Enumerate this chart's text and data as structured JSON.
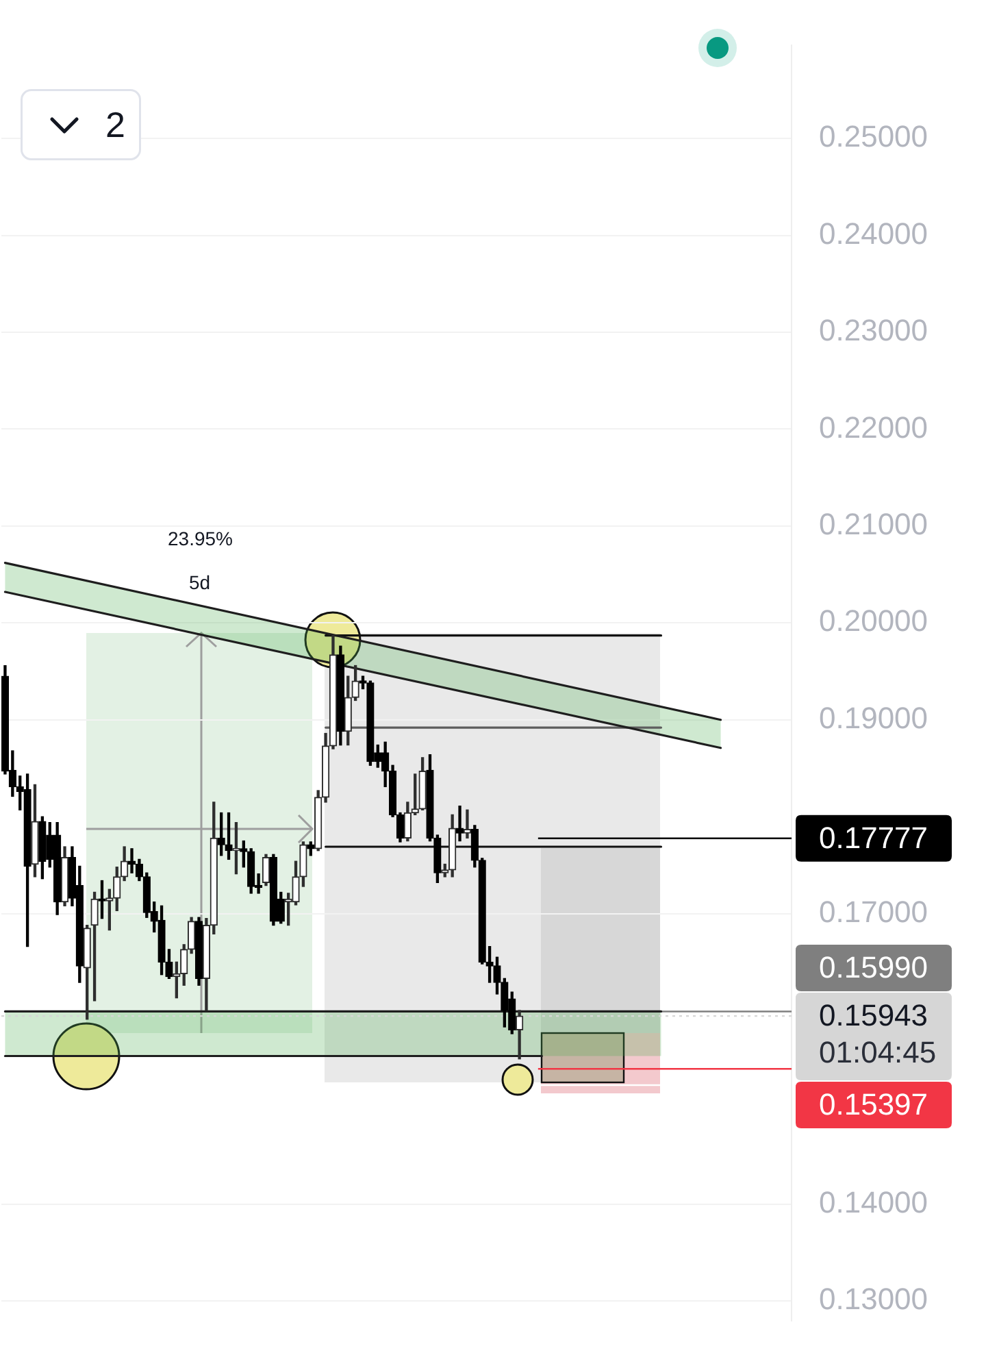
{
  "chart_data": {
    "type": "candlestick",
    "categories": [
      null,
      null,
      null,
      null,
      null,
      null,
      null,
      null,
      null,
      null,
      null,
      null,
      null,
      null,
      null,
      null,
      null,
      null,
      null,
      null,
      null,
      null,
      null,
      null,
      null,
      null,
      null,
      null,
      null,
      null,
      null,
      null,
      null,
      null,
      null,
      null,
      null,
      null,
      null,
      null,
      null,
      null,
      null,
      null,
      null,
      null,
      null,
      null,
      null,
      null,
      null,
      null,
      null,
      null,
      null,
      null,
      null,
      null,
      null,
      null,
      null,
      null,
      null,
      null,
      null,
      null,
      null,
      null,
      null,
      null,
      null,
      null,
      null,
      null,
      null,
      null,
      null,
      null,
      null,
      null,
      null,
      null,
      null,
      null,
      null,
      null,
      null,
      null,
      null,
      null,
      null,
      null,
      null,
      null,
      null,
      null,
      null,
      null,
      null,
      null,
      null,
      null,
      null,
      null,
      null,
      null
    ],
    "ohlc": [
      [
        0.1945,
        0.1956,
        0.1844,
        0.1847
      ],
      [
        0.1848,
        0.1868,
        0.1821,
        0.1831
      ],
      [
        0.1831,
        0.1842,
        0.1807,
        0.1826
      ],
      [
        0.1828,
        0.1844,
        0.1666,
        0.1749
      ],
      [
        0.1751,
        0.1833,
        0.1738,
        0.1795
      ],
      [
        0.1795,
        0.18,
        0.1736,
        0.1754
      ],
      [
        0.1781,
        0.1794,
        0.1748,
        0.1756
      ],
      [
        0.1781,
        0.1794,
        0.1699,
        0.1712
      ],
      [
        0.1712,
        0.1769,
        0.1708,
        0.1758
      ],
      [
        0.1758,
        0.1769,
        0.1708,
        0.1716
      ],
      [
        0.1729,
        0.1749,
        0.1629,
        0.1646
      ],
      [
        0.1644,
        0.1688,
        0.1591,
        0.1685
      ],
      [
        0.1688,
        0.1722,
        0.161,
        0.1715
      ],
      [
        0.1715,
        0.1734,
        0.1695,
        0.1713
      ],
      [
        0.1713,
        0.1725,
        0.1683,
        0.1716
      ],
      [
        0.1716,
        0.1748,
        0.1703,
        0.1738
      ],
      [
        0.1738,
        0.1769,
        0.1734,
        0.1754
      ],
      [
        0.1754,
        0.1767,
        0.1742,
        0.1751
      ],
      [
        0.1751,
        0.1756,
        0.1734,
        0.1738
      ],
      [
        0.1738,
        0.1742,
        0.1696,
        0.1701
      ],
      [
        0.1702,
        0.1712,
        0.1681,
        0.1692
      ],
      [
        0.1693,
        0.1708,
        0.1637,
        0.165
      ],
      [
        0.165,
        0.1663,
        0.1633,
        0.1635
      ],
      [
        0.1635,
        0.165,
        0.1613,
        0.1638
      ],
      [
        0.1638,
        0.1668,
        0.1626,
        0.1663
      ],
      [
        0.1663,
        0.1696,
        0.1659,
        0.1692
      ],
      [
        0.1692,
        0.1696,
        0.1626,
        0.1633
      ],
      [
        0.1633,
        0.1695,
        0.16,
        0.1688
      ],
      [
        0.1688,
        0.1815,
        0.1679,
        0.1778
      ],
      [
        0.1778,
        0.1804,
        0.176,
        0.1771
      ],
      [
        0.1771,
        0.1804,
        0.1756,
        0.1765
      ],
      [
        0.1765,
        0.1794,
        0.1741,
        0.1767
      ],
      [
        0.1767,
        0.1775,
        0.1748,
        0.1764
      ],
      [
        0.1764,
        0.1767,
        0.1721,
        0.1728
      ],
      [
        0.1729,
        0.1741,
        0.1721,
        0.1727
      ],
      [
        0.1732,
        0.1761,
        0.1729,
        0.1758
      ],
      [
        0.1758,
        0.1761,
        0.1688,
        0.1692
      ],
      [
        0.1715,
        0.1722,
        0.169,
        0.1692
      ],
      [
        0.1712,
        0.1721,
        0.1688,
        0.1715
      ],
      [
        0.1712,
        0.1754,
        0.1709,
        0.1738
      ],
      [
        0.1738,
        0.1774,
        0.1728,
        0.1771
      ],
      [
        0.1771,
        0.1774,
        0.176,
        0.1767
      ],
      [
        0.1767,
        0.1827,
        0.1765,
        0.182
      ],
      [
        0.182,
        0.1886,
        0.1815,
        0.1873
      ],
      [
        0.1873,
        0.1987,
        0.187,
        0.1967
      ],
      [
        0.1967,
        0.1976,
        0.1874,
        0.1888
      ],
      [
        0.1888,
        0.1945,
        0.1874,
        0.1923
      ],
      [
        0.1923,
        0.1956,
        0.192,
        0.194
      ],
      [
        0.194,
        0.1945,
        0.1932,
        0.1938
      ],
      [
        0.1938,
        0.194,
        0.1853,
        0.1857
      ],
      [
        0.1866,
        0.1874,
        0.1851,
        0.1857
      ],
      [
        0.1866,
        0.1877,
        0.1831,
        0.1847
      ],
      [
        0.1847,
        0.1853,
        0.18,
        0.1802
      ],
      [
        0.1802,
        0.1804,
        0.1774,
        0.1778
      ],
      [
        0.1778,
        0.1815,
        0.1775,
        0.1804
      ],
      [
        0.1804,
        0.1844,
        0.1802,
        0.1808
      ],
      [
        0.1808,
        0.1861,
        0.1807,
        0.1847
      ],
      [
        0.1848,
        0.1864,
        0.1775,
        0.1778
      ],
      [
        0.1778,
        0.1781,
        0.1732,
        0.1742
      ],
      [
        0.1742,
        0.1751,
        0.1738,
        0.1745
      ],
      [
        0.1745,
        0.1802,
        0.1738,
        0.1788
      ],
      [
        0.1788,
        0.1811,
        0.1775,
        0.1783
      ],
      [
        0.1783,
        0.1807,
        0.1778,
        0.1787
      ],
      [
        0.1787,
        0.1791,
        0.1748,
        0.1755
      ],
      [
        0.1755,
        0.1757,
        0.1648,
        0.165
      ],
      [
        0.165,
        0.1666,
        0.1629,
        0.1646
      ],
      [
        0.1646,
        0.1655,
        0.1617,
        0.1629
      ],
      [
        0.1629,
        0.1633,
        0.1583,
        0.16
      ],
      [
        0.1612,
        0.1619,
        0.1576,
        0.158
      ],
      [
        0.158,
        0.16,
        0.155,
        0.15943
      ],
      null,
      null,
      null,
      null,
      null,
      null,
      null,
      null,
      null,
      null,
      null,
      null,
      null,
      null,
      null,
      null,
      null,
      null,
      null,
      null,
      null,
      null,
      null,
      null,
      null,
      null,
      null,
      null,
      null,
      null,
      null,
      null,
      null,
      null,
      null,
      null
    ],
    "series": [
      {
        "type": "line",
        "color": "#1e1e1e",
        "values": [
          0.2062,
          null,
          null,
          null,
          null,
          null,
          null,
          null,
          null,
          null,
          null,
          null,
          null,
          null,
          null,
          null,
          null,
          null,
          null,
          null,
          null,
          null,
          null,
          null,
          null,
          null,
          null,
          null,
          null,
          null,
          null,
          null,
          null,
          null,
          null,
          null,
          null,
          null,
          null,
          null,
          null,
          null,
          null,
          null,
          null,
          null,
          null,
          null,
          null,
          null,
          null,
          null,
          null,
          null,
          null,
          null,
          null,
          null,
          null,
          null,
          null,
          null,
          null,
          null,
          null,
          null,
          null,
          null,
          null,
          null,
          null,
          null,
          null,
          null,
          null,
          null,
          null,
          null,
          null,
          null,
          null,
          null,
          null,
          null,
          null,
          null,
          null,
          null,
          null,
          null,
          null,
          null,
          null,
          null,
          null,
          null,
          0.19,
          null,
          null,
          null,
          null,
          null,
          null,
          null,
          null,
          null
        ]
      },
      {
        "type": "line",
        "color": "#1e1e1e",
        "values": [
          0.2032,
          null,
          null,
          null,
          null,
          null,
          null,
          null,
          null,
          null,
          null,
          null,
          null,
          null,
          null,
          null,
          null,
          null,
          null,
          null,
          null,
          null,
          null,
          null,
          null,
          null,
          null,
          null,
          null,
          null,
          null,
          null,
          null,
          null,
          null,
          null,
          null,
          null,
          null,
          null,
          null,
          null,
          null,
          null,
          null,
          null,
          null,
          null,
          null,
          null,
          null,
          null,
          null,
          null,
          null,
          null,
          null,
          null,
          null,
          null,
          null,
          null,
          null,
          null,
          null,
          null,
          null,
          null,
          null,
          null,
          null,
          null,
          null,
          null,
          null,
          null,
          null,
          null,
          null,
          null,
          null,
          null,
          null,
          null,
          null,
          null,
          null,
          null,
          null,
          null,
          null,
          null,
          null,
          null,
          null,
          null,
          0.1871,
          null,
          null,
          null,
          null,
          null,
          null,
          null,
          null,
          null
        ],
        "lower": [
          0.2032,
          null,
          null,
          null,
          null,
          null,
          null,
          null,
          null,
          null,
          null,
          null,
          null,
          null,
          null,
          null,
          null,
          null,
          null,
          null,
          null,
          null,
          null,
          null,
          null,
          null,
          null,
          null,
          null,
          null,
          null,
          null,
          null,
          null,
          null,
          null,
          null,
          null,
          null,
          null,
          null,
          null,
          null,
          null,
          null,
          null,
          null,
          null,
          null,
          null,
          null,
          null,
          null,
          null,
          null,
          null,
          null,
          null,
          null,
          null,
          null,
          null,
          null,
          null,
          null,
          null,
          null,
          null,
          null,
          null,
          null,
          null,
          null,
          null,
          null,
          null,
          null,
          null,
          null,
          null,
          null,
          null,
          null,
          null,
          null,
          null,
          null,
          null,
          null,
          null,
          null,
          null,
          null,
          null,
          null,
          null,
          0.1871,
          null,
          null,
          null,
          null,
          null,
          null,
          null,
          null,
          null
        ],
        "upper": [
          0.2062,
          null,
          null,
          null,
          null,
          null,
          null,
          null,
          null,
          null,
          null,
          null,
          null,
          null,
          null,
          null,
          null,
          null,
          null,
          null,
          null,
          null,
          null,
          null,
          null,
          null,
          null,
          null,
          null,
          null,
          null,
          null,
          null,
          null,
          null,
          null,
          null,
          null,
          null,
          null,
          null,
          null,
          null,
          null,
          null,
          null,
          null,
          null,
          null,
          null,
          null,
          null,
          null,
          null,
          null,
          null,
          null,
          null,
          null,
          null,
          null,
          null,
          null,
          null,
          null,
          null,
          null,
          null,
          null,
          null,
          null,
          null,
          null,
          null,
          null,
          null,
          null,
          null,
          null,
          null,
          null,
          null,
          null,
          null,
          null,
          null,
          null,
          null,
          null,
          null,
          null,
          null,
          null,
          null,
          null,
          null,
          0.19,
          null,
          null,
          null,
          null,
          null,
          null,
          null,
          null,
          null
        ]
      },
      {
        "type": "line",
        "color": "#1e1e1e",
        "values": [
          0.1599,
          null,
          null,
          null,
          null,
          null,
          null,
          null,
          null,
          null,
          null,
          null,
          null,
          null,
          null,
          null,
          null,
          null,
          null,
          null,
          null,
          null,
          null,
          null,
          null,
          null,
          null,
          null,
          null,
          null,
          null,
          null,
          null,
          null,
          null,
          null,
          null,
          null,
          null,
          null,
          null,
          null,
          null,
          null,
          null,
          null,
          null,
          null,
          null,
          null,
          null,
          null,
          null,
          null,
          null,
          null,
          null,
          null,
          null,
          null,
          null,
          null,
          null,
          null,
          null,
          null,
          null,
          null,
          null,
          null,
          null,
          null,
          null,
          null,
          null,
          null,
          null,
          null,
          null,
          null,
          null,
          null,
          null,
          null,
          null,
          null,
          null,
          null,
          0.1599,
          null,
          null,
          null,
          null,
          null,
          null,
          null,
          null,
          null,
          null,
          null,
          null,
          null,
          null,
          null,
          null,
          null
        ],
        "lower": [
          0.1553,
          null,
          null,
          null,
          null,
          null,
          null,
          null,
          null,
          null,
          null,
          null,
          null,
          null,
          null,
          null,
          null,
          null,
          null,
          null,
          null,
          null,
          null,
          null,
          null,
          null,
          null,
          null,
          null,
          null,
          null,
          null,
          null,
          null,
          null,
          null,
          null,
          null,
          null,
          null,
          null,
          null,
          null,
          null,
          null,
          null,
          null,
          null,
          null,
          null,
          null,
          null,
          null,
          null,
          null,
          null,
          null,
          null,
          null,
          null,
          null,
          null,
          null,
          null,
          null,
          null,
          null,
          null,
          null,
          null,
          null,
          null,
          null,
          null,
          null,
          null,
          null,
          null,
          null,
          null,
          null,
          null,
          null,
          null,
          null,
          null,
          null,
          null,
          0.1553,
          null,
          null,
          null,
          null,
          null,
          null,
          null,
          null,
          null,
          null,
          null,
          null,
          null,
          null,
          null,
          null,
          null
        ],
        "upper": [
          0.1599,
          null,
          null,
          null,
          null,
          null,
          null,
          null,
          null,
          null,
          null,
          null,
          null,
          null,
          null,
          null,
          null,
          null,
          null,
          null,
          null,
          null,
          null,
          null,
          null,
          null,
          null,
          null,
          null,
          null,
          null,
          null,
          null,
          null,
          null,
          null,
          null,
          null,
          null,
          null,
          null,
          null,
          null,
          null,
          null,
          null,
          null,
          null,
          null,
          null,
          null,
          null,
          null,
          null,
          null,
          null,
          null,
          null,
          null,
          null,
          null,
          null,
          null,
          null,
          null,
          null,
          null,
          null,
          null,
          null,
          null,
          null,
          null,
          null,
          null,
          null,
          null,
          null,
          null,
          null,
          null,
          null,
          null,
          null,
          null,
          null,
          null,
          null,
          0.1599,
          null,
          null,
          null,
          null,
          null,
          null,
          null,
          null,
          null,
          null,
          null,
          null,
          null,
          null,
          null,
          null,
          null
        ]
      },
      {
        "type": "line",
        "color": "#1e1e1e",
        "values": [
          0.1553,
          null,
          null,
          null,
          null,
          null,
          null,
          null,
          null,
          null,
          null,
          null,
          null,
          null,
          null,
          null,
          null,
          null,
          null,
          null,
          null,
          null,
          null,
          null,
          null,
          null,
          null,
          null,
          null,
          null,
          null,
          null,
          null,
          null,
          null,
          null,
          null,
          null,
          null,
          null,
          null,
          null,
          null,
          null,
          null,
          null,
          null,
          null,
          null,
          null,
          null,
          null,
          null,
          null,
          null,
          null,
          null,
          null,
          null,
          null,
          null,
          null,
          null,
          null,
          null,
          null,
          null,
          null,
          null,
          null,
          null,
          null,
          0.1553,
          null,
          null,
          null,
          null,
          null,
          null,
          null,
          null,
          null,
          null,
          null,
          null,
          null,
          null,
          null,
          null,
          null,
          null,
          null,
          null,
          null,
          null,
          null,
          null,
          null,
          null,
          null,
          null,
          null,
          null,
          null,
          null,
          null
        ]
      },
      {
        "type": "line",
        "color": "#111111",
        "values": [
          null,
          null,
          null,
          null,
          null,
          null,
          null,
          null,
          null,
          null,
          null,
          null,
          null,
          null,
          null,
          null,
          null,
          null,
          null,
          null,
          null,
          null,
          null,
          null,
          null,
          null,
          null,
          null,
          null,
          null,
          null,
          null,
          null,
          null,
          null,
          null,
          null,
          null,
          null,
          null,
          null,
          null,
          null,
          0.1987,
          null,
          null,
          null,
          null,
          null,
          null,
          null,
          null,
          null,
          null,
          null,
          null,
          null,
          null,
          null,
          null,
          null,
          null,
          null,
          null,
          null,
          null,
          null,
          null,
          null,
          null,
          null,
          null,
          null,
          null,
          null,
          null,
          null,
          null,
          null,
          null,
          null,
          null,
          null,
          null,
          null,
          null,
          null,
          null,
          0.1987,
          null,
          null,
          null,
          null,
          null,
          null,
          null,
          null,
          null,
          null,
          null,
          null,
          null,
          null,
          null,
          null,
          null
        ]
      },
      {
        "type": "line",
        "color": "#5d5d5d",
        "values": [
          null,
          null,
          null,
          null,
          null,
          null,
          null,
          null,
          null,
          null,
          null,
          null,
          null,
          null,
          null,
          null,
          null,
          null,
          null,
          null,
          null,
          null,
          null,
          null,
          null,
          null,
          null,
          null,
          null,
          null,
          null,
          null,
          null,
          null,
          null,
          null,
          null,
          null,
          null,
          null,
          null,
          null,
          null,
          0.1892,
          null,
          null,
          null,
          null,
          null,
          null,
          null,
          null,
          null,
          null,
          null,
          null,
          null,
          null,
          null,
          null,
          null,
          null,
          null,
          null,
          null,
          null,
          null,
          null,
          null,
          null,
          null,
          null,
          null,
          null,
          null,
          null,
          null,
          null,
          null,
          null,
          null,
          null,
          null,
          null,
          null,
          null,
          null,
          null,
          0.1892,
          null,
          null,
          null,
          null,
          null,
          null,
          null,
          null,
          null,
          null,
          null,
          null,
          null,
          null,
          null,
          null,
          null
        ]
      },
      {
        "type": "line",
        "color": "#111111",
        "values": [
          null,
          null,
          null,
          null,
          null,
          null,
          null,
          null,
          null,
          null,
          null,
          null,
          null,
          null,
          null,
          null,
          null,
          null,
          null,
          null,
          null,
          null,
          null,
          null,
          null,
          null,
          null,
          null,
          null,
          null,
          null,
          null,
          null,
          null,
          null,
          null,
          null,
          null,
          null,
          null,
          null,
          null,
          null,
          0.1769,
          null,
          null,
          null,
          null,
          null,
          null,
          null,
          null,
          null,
          null,
          null,
          null,
          null,
          null,
          null,
          null,
          null,
          null,
          null,
          null,
          null,
          null,
          null,
          null,
          null,
          null,
          null,
          null,
          null,
          null,
          null,
          null,
          null,
          null,
          null,
          null,
          null,
          null,
          null,
          null,
          null,
          null,
          null,
          null,
          0.1769,
          null,
          null,
          null,
          null,
          null,
          null,
          null,
          null,
          null,
          null,
          null,
          null,
          null,
          null,
          null,
          null,
          null
        ]
      }
    ],
    "ylim": [
      0.128,
      0.2596
    ],
    "yticks": [
      {
        "value": 0.25,
        "label": "0.25000"
      },
      {
        "value": 0.24,
        "label": "0.24000"
      },
      {
        "value": 0.23,
        "label": "0.23000"
      },
      {
        "value": 0.22,
        "label": "0.22000"
      },
      {
        "value": 0.21,
        "label": "0.21000"
      },
      {
        "value": 0.2,
        "label": "0.20000"
      },
      {
        "value": 0.19,
        "label": "0.19000"
      },
      {
        "value": 0.17,
        "label": "0.17000"
      },
      {
        "value": 0.14,
        "label": "0.14000"
      },
      {
        "value": 0.13,
        "label": "0.13000"
      }
    ],
    "grid": "y",
    "ref_lines": [
      {
        "axis": "y",
        "value": 0.17777,
        "label": "0.17777",
        "color": "#000000"
      },
      {
        "axis": "y",
        "value": 0.1599,
        "label": "0.15990",
        "color": "#7f7f7f"
      },
      {
        "axis": "y",
        "value": 0.15943,
        "label": "0.15943",
        "color": "#d6d6d6",
        "line_style": "dotted"
      },
      {
        "axis": "y",
        "value": 0.15397,
        "label": "0.15397",
        "color": "#f23645"
      }
    ],
    "annotations": [
      "23.95%",
      "5d",
      "01:04:45",
      "2"
    ]
  }
}
